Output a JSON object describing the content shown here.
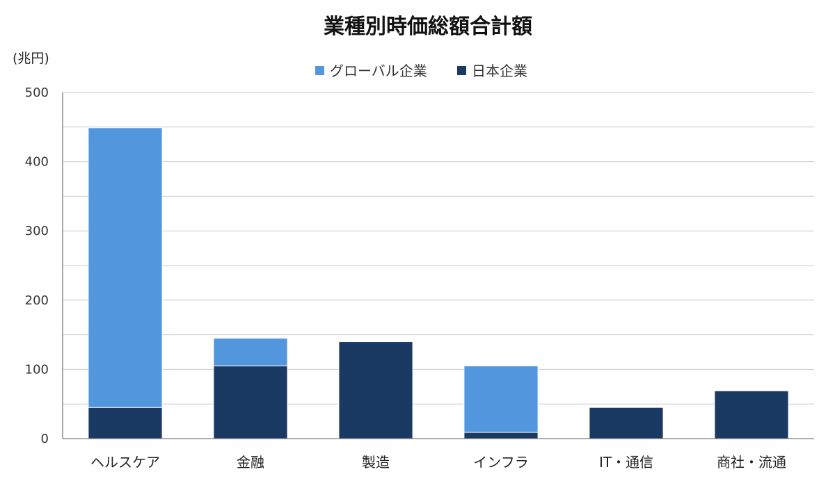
{
  "chart_data": {
    "type": "bar",
    "stacked": true,
    "title": "業種別時価総額合計額",
    "ylabel": "(兆円)",
    "xlabel": "",
    "categories": [
      "ヘルスケア",
      "金融",
      "製造",
      "インフラ",
      "IT・通信",
      "商社・流通"
    ],
    "series": [
      {
        "name": "日本企業",
        "color": "#1a3a63",
        "values": [
          45,
          105,
          140,
          9,
          45,
          69
        ]
      },
      {
        "name": "グローバル企業",
        "color": "#5296de",
        "values": [
          404,
          40,
          0,
          96,
          0,
          0
        ]
      }
    ],
    "legend_order": [
      "グローバル企業",
      "日本企業"
    ],
    "ylim": [
      0,
      500
    ],
    "yticks": [
      0,
      100,
      200,
      300,
      400,
      500
    ],
    "minor_gridlines": [
      50,
      150,
      250,
      350,
      450
    ],
    "grid": true,
    "legend_position": "top-center"
  }
}
